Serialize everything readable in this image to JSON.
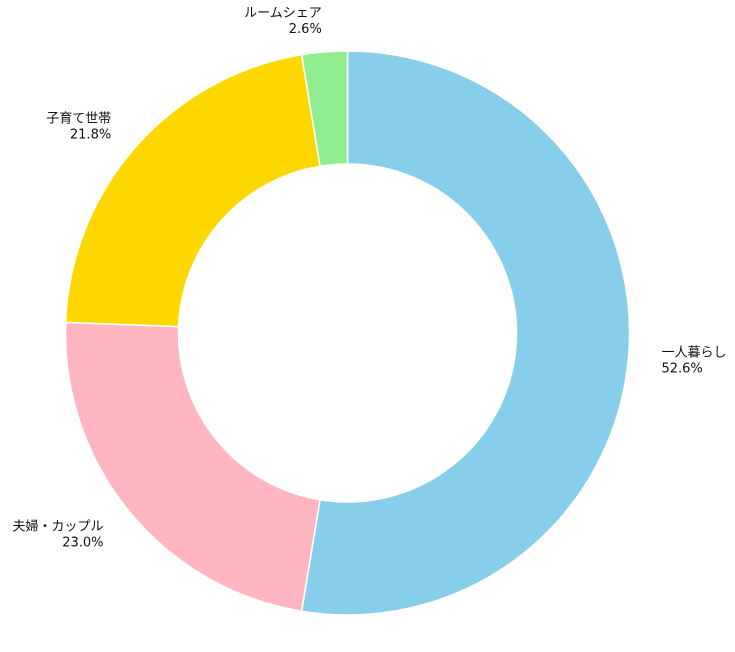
{
  "chart_data": {
    "type": "pie",
    "variant": "donut",
    "start_angle_deg": 90,
    "direction": "clockwise",
    "slices": [
      {
        "label": "一人暮らし",
        "value": 52.6,
        "pct_label": "52.6%",
        "color": "#87CEEB"
      },
      {
        "label": "夫婦・カップル",
        "value": 23.0,
        "pct_label": "23.0%",
        "color": "#FFB6C1"
      },
      {
        "label": "子育て世帯",
        "value": 21.8,
        "pct_label": "21.8%",
        "color": "#FFD700"
      },
      {
        "label": "ルームシェア",
        "value": 2.6,
        "pct_label": "2.6%",
        "color": "#90EE90"
      }
    ],
    "title": "",
    "legend": "none"
  }
}
